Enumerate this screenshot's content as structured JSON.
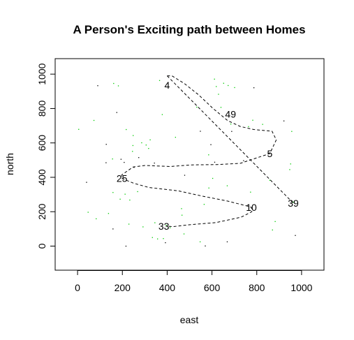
{
  "chart_data": {
    "type": "scatter",
    "title": "A Person's Exciting path between Homes",
    "xlabel": "east",
    "ylabel": "north",
    "xlim": [
      -100,
      1100
    ],
    "ylim": [
      -140,
      1090
    ],
    "xticks": [
      0,
      200,
      400,
      600,
      800,
      1000
    ],
    "yticks": [
      0,
      200,
      400,
      600,
      800,
      1000
    ],
    "tick_labels_x": [
      "0",
      "200",
      "400",
      "600",
      "800",
      "1000"
    ],
    "tick_labels_y": [
      "0",
      "200",
      "400",
      "600",
      "800",
      "1000"
    ],
    "grid": false,
    "legend": "none",
    "colors": {
      "path": "#000000",
      "green_points": "#00cc00",
      "black_points": "#000000",
      "frame": "#000000"
    },
    "labeled_homes": [
      {
        "label": "4",
        "x": 400,
        "y": 935
      },
      {
        "label": "49",
        "x": 683,
        "y": 768
      },
      {
        "label": "5",
        "x": 858,
        "y": 538
      },
      {
        "label": "25",
        "x": 198,
        "y": 393
      },
      {
        "label": "39",
        "x": 963,
        "y": 250
      },
      {
        "label": "10",
        "x": 776,
        "y": 225
      },
      {
        "label": "33",
        "x": 385,
        "y": 116
      }
    ],
    "path_dashed": [
      [
        400,
        990
      ],
      [
        421,
        990
      ],
      [
        477,
        945
      ],
      [
        540,
        880
      ],
      [
        605,
        800
      ],
      [
        670,
        730
      ],
      [
        726,
        696
      ],
      [
        786,
        678
      ],
      [
        868,
        668
      ],
      [
        887,
        618
      ],
      [
        858,
        538
      ],
      [
        805,
        515
      ],
      [
        726,
        481
      ],
      [
        623,
        474
      ],
      [
        510,
        472
      ],
      [
        413,
        463
      ],
      [
        302,
        469
      ],
      [
        248,
        460
      ],
      [
        198,
        415
      ],
      [
        198,
        393
      ],
      [
        252,
        365
      ],
      [
        318,
        341
      ],
      [
        450,
        321
      ],
      [
        560,
        290
      ],
      [
        670,
        262
      ],
      [
        763,
        231
      ],
      [
        776,
        225
      ],
      [
        778,
        200
      ],
      [
        730,
        168
      ],
      [
        618,
        137
      ],
      [
        497,
        124
      ],
      [
        424,
        113
      ],
      [
        400,
        116
      ]
    ],
    "path_direct": [
      [
        400,
        990
      ],
      [
        963,
        250
      ]
    ],
    "green_points": [
      [
        5,
        679
      ],
      [
        47,
        197
      ],
      [
        73,
        731
      ],
      [
        83,
        159
      ],
      [
        156,
        507
      ],
      [
        158,
        312
      ],
      [
        161,
        946
      ],
      [
        182,
        932
      ],
      [
        190,
        273
      ],
      [
        212,
        302
      ],
      [
        217,
        678
      ],
      [
        229,
        128
      ],
      [
        233,
        268
      ],
      [
        245,
        551
      ],
      [
        247,
        585
      ],
      [
        248,
        643
      ],
      [
        268,
        317
      ],
      [
        286,
        601
      ],
      [
        292,
        112
      ],
      [
        306,
        588
      ],
      [
        317,
        568
      ],
      [
        324,
        618
      ],
      [
        334,
        50
      ],
      [
        345,
        136
      ],
      [
        357,
        42
      ],
      [
        366,
        963
      ],
      [
        378,
        765
      ],
      [
        383,
        44
      ],
      [
        396,
        121
      ],
      [
        413,
        107
      ],
      [
        437,
        633
      ],
      [
        464,
        218
      ],
      [
        466,
        180
      ],
      [
        475,
        71
      ],
      [
        532,
        808
      ],
      [
        547,
        25
      ],
      [
        565,
        243
      ],
      [
        585,
        531
      ],
      [
        586,
        338
      ],
      [
        611,
        971
      ],
      [
        619,
        928
      ],
      [
        629,
        883
      ],
      [
        640,
        807
      ],
      [
        652,
        947
      ],
      [
        672,
        934
      ],
      [
        684,
        710
      ],
      [
        701,
        922
      ],
      [
        763,
        695
      ],
      [
        772,
        314
      ],
      [
        782,
        732
      ],
      [
        826,
        708
      ],
      [
        858,
        383
      ],
      [
        870,
        94
      ],
      [
        882,
        143
      ],
      [
        947,
        445
      ],
      [
        951,
        478
      ],
      [
        956,
        667
      ],
      [
        963,
        256
      ],
      [
        138,
        190
      ],
      [
        603,
        394
      ],
      [
        668,
        351
      ]
    ],
    "black_points": [
      [
        40,
        371
      ],
      [
        90,
        933
      ],
      [
        127,
        485
      ],
      [
        158,
        100
      ],
      [
        175,
        777
      ],
      [
        194,
        505
      ],
      [
        208,
        487
      ],
      [
        252,
        458
      ],
      [
        273,
        515
      ],
      [
        343,
        483
      ],
      [
        392,
        20
      ],
      [
        478,
        412
      ],
      [
        548,
        668
      ],
      [
        570,
        1
      ],
      [
        595,
        590
      ],
      [
        668,
        25
      ],
      [
        688,
        667
      ],
      [
        741,
        497
      ],
      [
        787,
        921
      ],
      [
        921,
        728
      ],
      [
        972,
        62
      ],
      [
        128,
        592
      ],
      [
        216,
        0
      ],
      [
        612,
        488
      ]
    ]
  }
}
